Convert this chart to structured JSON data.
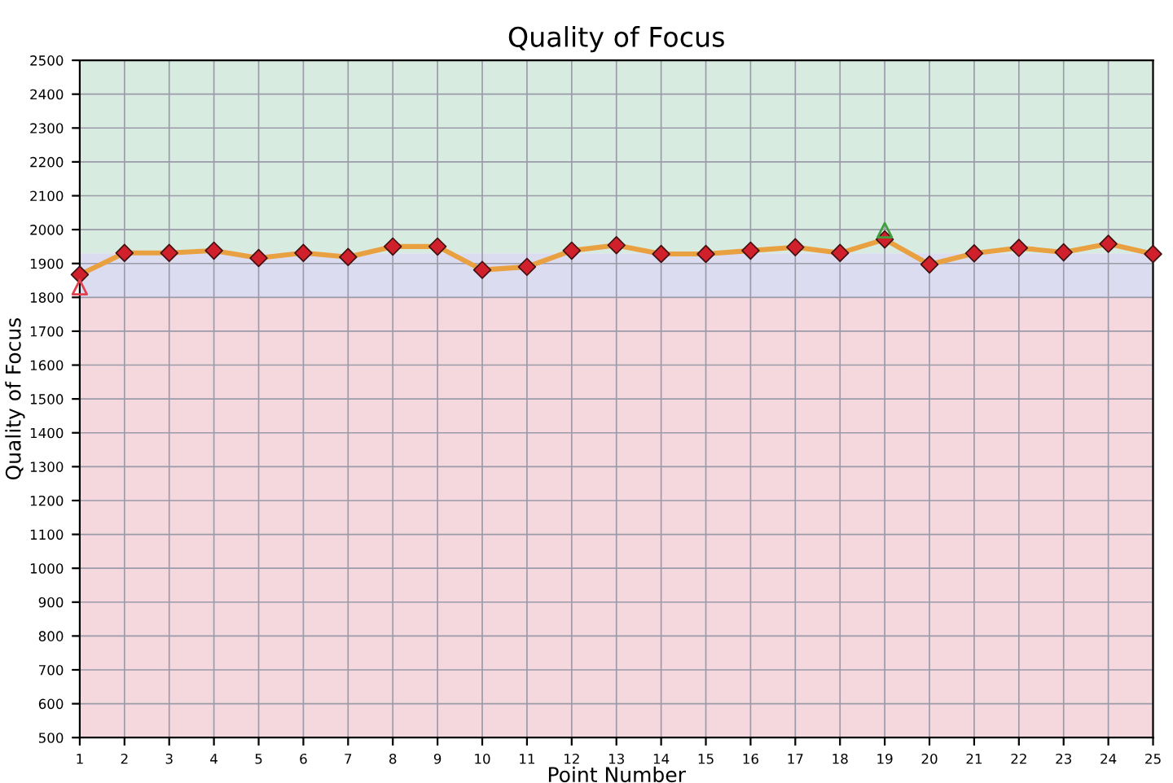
{
  "chart_data": {
    "type": "line",
    "title": "Quality of Focus",
    "xlabel": "Point Number",
    "ylabel": "Quality of Focus",
    "x": [
      1,
      2,
      3,
      4,
      5,
      6,
      7,
      8,
      9,
      10,
      11,
      12,
      13,
      14,
      15,
      16,
      17,
      18,
      19,
      20,
      21,
      22,
      23,
      24,
      25
    ],
    "series": [
      {
        "color": "#e8a040",
        "marker": "diamond",
        "values": [
          1867,
          1931,
          1931,
          1938,
          1916,
          1931,
          1919,
          1950,
          1950,
          1881,
          1890,
          1938,
          1954,
          1928,
          1928,
          1938,
          1948,
          1931,
          1971,
          1897,
          1930,
          1946,
          1933,
          1958,
          1928
        ]
      },
      {
        "type": "scatter",
        "color": "#e04050",
        "marker": "triangle",
        "x": [
          1
        ],
        "values": [
          1830
        ]
      },
      {
        "type": "scatter",
        "color": "#40a040",
        "marker": "triangle",
        "x": [
          19
        ],
        "values": [
          1998
        ]
      }
    ],
    "bands": [
      {
        "axis": "y",
        "from": 1930,
        "to": 2500,
        "color": "#d8ebe0"
      },
      {
        "axis": "y",
        "from": 1800,
        "to": 1930,
        "color": "#dcdcf0"
      },
      {
        "axis": "y",
        "from": 500,
        "to": 1800,
        "color": "#f5d8de"
      }
    ],
    "xlim": [
      1,
      25
    ],
    "xticks": [
      1,
      2,
      3,
      4,
      5,
      6,
      7,
      8,
      9,
      10,
      11,
      12,
      13,
      14,
      15,
      16,
      17,
      18,
      19,
      20,
      21,
      22,
      23,
      24,
      25
    ],
    "ylim": [
      500,
      2500
    ],
    "yticks": [
      500,
      600,
      700,
      800,
      900,
      1000,
      1100,
      1200,
      1300,
      1400,
      1500,
      1600,
      1700,
      1800,
      1900,
      2000,
      2100,
      2200,
      2300,
      2400,
      2500
    ],
    "grid": true,
    "line_style": "solid"
  }
}
